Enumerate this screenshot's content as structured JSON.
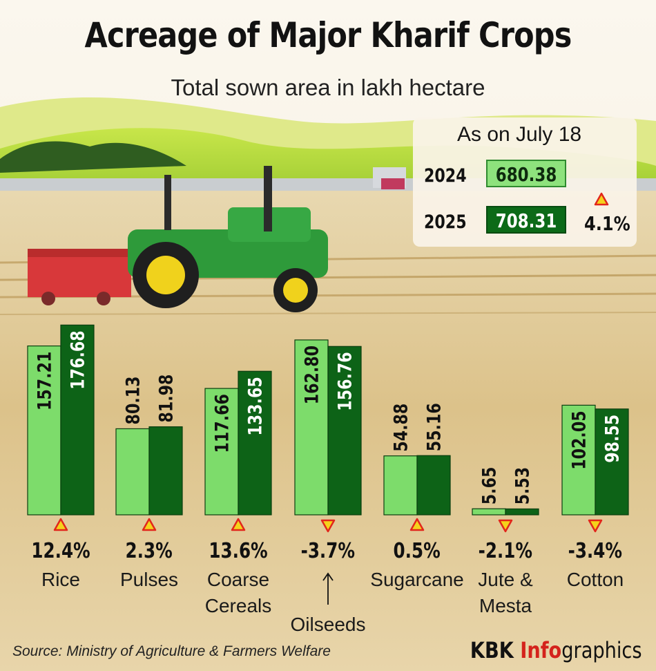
{
  "title": "Acreage of Major Kharif Crops",
  "subtitle": "Total sown area in lakh hectare",
  "summary": {
    "date_label": "As on July 18",
    "rows": [
      {
        "year": "2024",
        "value": "680.38"
      },
      {
        "year": "2025",
        "value": "708.31"
      }
    ],
    "change": "4.1%",
    "change_direction": "up"
  },
  "chart_data": {
    "type": "bar",
    "categories": [
      "Rice",
      "Pulses",
      "Coarse Cereals",
      "Oilseeds",
      "Sugarcane",
      "Jute & Mesta",
      "Cotton"
    ],
    "series": [
      {
        "name": "2024",
        "values": [
          157.21,
          80.13,
          117.66,
          162.8,
          54.88,
          5.65,
          102.05
        ]
      },
      {
        "name": "2025",
        "values": [
          176.68,
          81.98,
          133.65,
          156.76,
          55.16,
          5.53,
          98.55
        ]
      }
    ],
    "value_labels": {
      "2024": [
        "157.21",
        "80.13",
        "117.66",
        "162.80",
        "54.88",
        "5.65",
        "102.05"
      ],
      "2025": [
        "176.68",
        "81.98",
        "133.65",
        "156.76",
        "55.16",
        "5.53",
        "98.55"
      ]
    },
    "changes": [
      "12.4%",
      "2.3%",
      "13.6%",
      "-3.7%",
      "0.5%",
      "-2.1%",
      "-3.4%"
    ],
    "change_directions": [
      "up",
      "up",
      "up",
      "down",
      "up",
      "down",
      "down"
    ],
    "label_lines": [
      [
        "Rice"
      ],
      [
        "Pulses"
      ],
      [
        "Coarse",
        "Cereals"
      ],
      [
        "Oilseeds"
      ],
      [
        "Sugarcane"
      ],
      [
        "Jute &",
        "Mesta"
      ],
      [
        "Cotton"
      ]
    ],
    "colors": {
      "2024": "#7ddc6b",
      "2025": "#0d6317",
      "up_marker": "#f5d21b",
      "marker_outline": "#e2261b"
    },
    "ylim": [
      0,
      180
    ]
  },
  "source": "Source: Ministry of Agriculture & Farmers Welfare",
  "brand": {
    "part1": "KBK ",
    "part2": "Info",
    "part3": "graphics"
  }
}
